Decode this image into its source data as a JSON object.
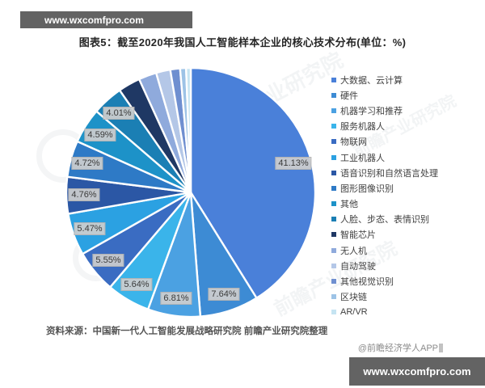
{
  "header": {
    "site_bar_text": "www.wxcomfpro.com"
  },
  "title": "图表5：截至2020年我国人工智能样本企业的核心技术分布(单位：%)",
  "chart_data": {
    "type": "pie",
    "title": "截至2020年我国人工智能样本企业的核心技术分布",
    "unit": "%",
    "start_angle_deg": 0,
    "direction": "clockwise",
    "legend_position": "right",
    "slices": [
      {
        "name": "大数据、云计算",
        "value": 41.13,
        "label": "41.13%",
        "color": "#4a80d9"
      },
      {
        "name": "硬件",
        "value": 7.64,
        "label": "7.64%",
        "color": "#3d8bd4"
      },
      {
        "name": "机器学习和推荐",
        "value": 6.81,
        "label": "6.81%",
        "color": "#4ba1e2"
      },
      {
        "name": "服务机器人",
        "value": 5.64,
        "label": "5.64%",
        "color": "#3ab4ea"
      },
      {
        "name": "物联网",
        "value": 5.55,
        "label": "5.55%",
        "color": "#3a6cc2"
      },
      {
        "name": "工业机器人",
        "value": 5.47,
        "label": "5.47%",
        "color": "#2ba1e2"
      },
      {
        "name": "语音识别和自然语言处理",
        "value": 4.76,
        "label": "4.76%",
        "color": "#2b57a5"
      },
      {
        "name": "图形图像识别",
        "value": 4.72,
        "label": "4.72%",
        "color": "#2e7ac6"
      },
      {
        "name": "其他",
        "value": 4.59,
        "label": "4.59%",
        "color": "#1d92c8"
      },
      {
        "name": "人脸、步态、表情识别",
        "value": 4.01,
        "label": "4.01%",
        "color": "#1b7fb4"
      },
      {
        "name": "智能芯片",
        "value": 2.87,
        "label": "",
        "value_estimated": true,
        "color": "#1f3864"
      },
      {
        "name": "无人机",
        "value": 2.32,
        "label": "",
        "value_estimated": true,
        "color": "#8faadc"
      },
      {
        "name": "自动驾驶",
        "value": 1.85,
        "label": "",
        "value_estimated": true,
        "color": "#b4c7e7"
      },
      {
        "name": "其他视觉识别",
        "value": 1.27,
        "label": "",
        "value_estimated": true,
        "color": "#6f8fd0"
      },
      {
        "name": "区块链",
        "value": 0.77,
        "label": "",
        "value_estimated": true,
        "color": "#9dc3e6"
      },
      {
        "name": "AR/VR",
        "value": 0.6,
        "label": "",
        "value_estimated": true,
        "color": "#c5e4f2"
      }
    ]
  },
  "source_note": "资料来源：中国新一代人工智能发展战略研究院 前瞻产业研究院整理",
  "credit": "@前瞻经济学人APP",
  "footer": {
    "site_bar_text": "www.wxcomfpro.com"
  },
  "watermark": {
    "text": "前瞻产业研究院"
  }
}
